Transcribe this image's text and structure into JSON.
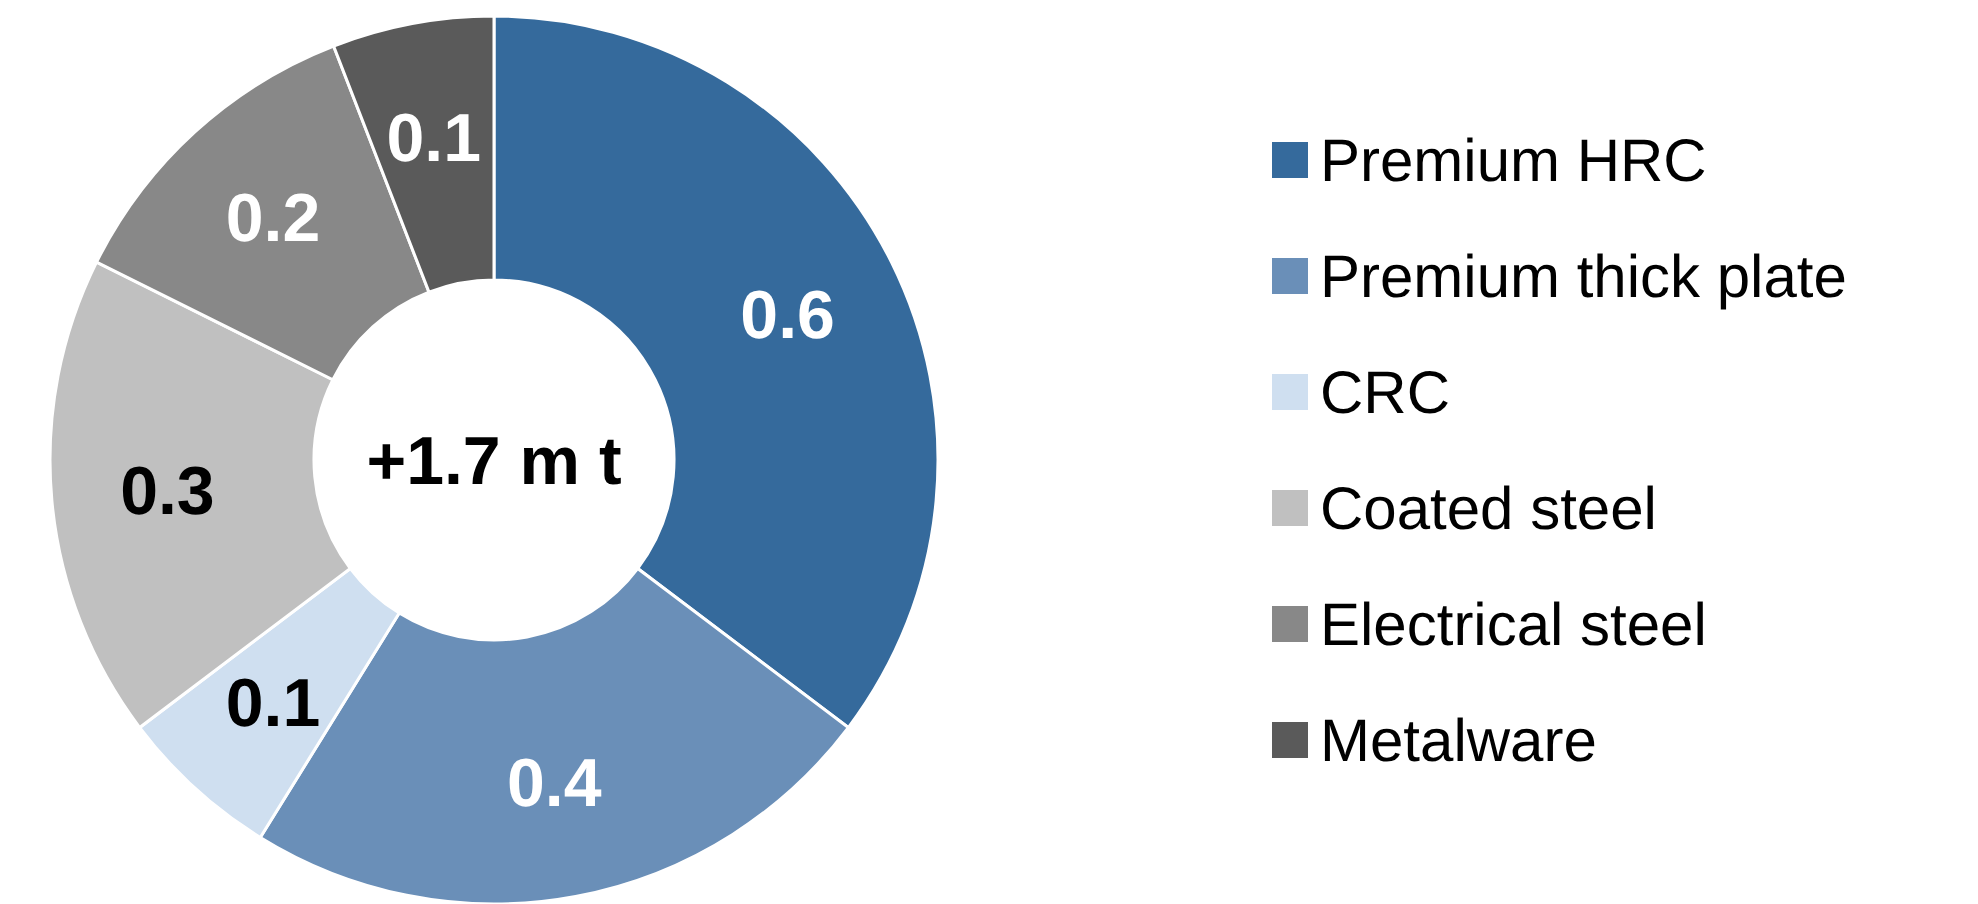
{
  "chart_data": {
    "type": "donut",
    "categories": [
      "Premium HRC",
      "Premium thick plate",
      "CRC",
      "Coated steel",
      "Electrical steel",
      "Metalware"
    ],
    "values": [
      0.6,
      0.4,
      0.1,
      0.3,
      0.2,
      0.1
    ],
    "colors": [
      "#356a9c",
      "#6a8fb8",
      "#cfdff0",
      "#c0c0c0",
      "#888888",
      "#5a5a5a"
    ],
    "data_labels": true,
    "legend": "right",
    "annotations": [
      "+1.7 m t"
    ]
  }
}
